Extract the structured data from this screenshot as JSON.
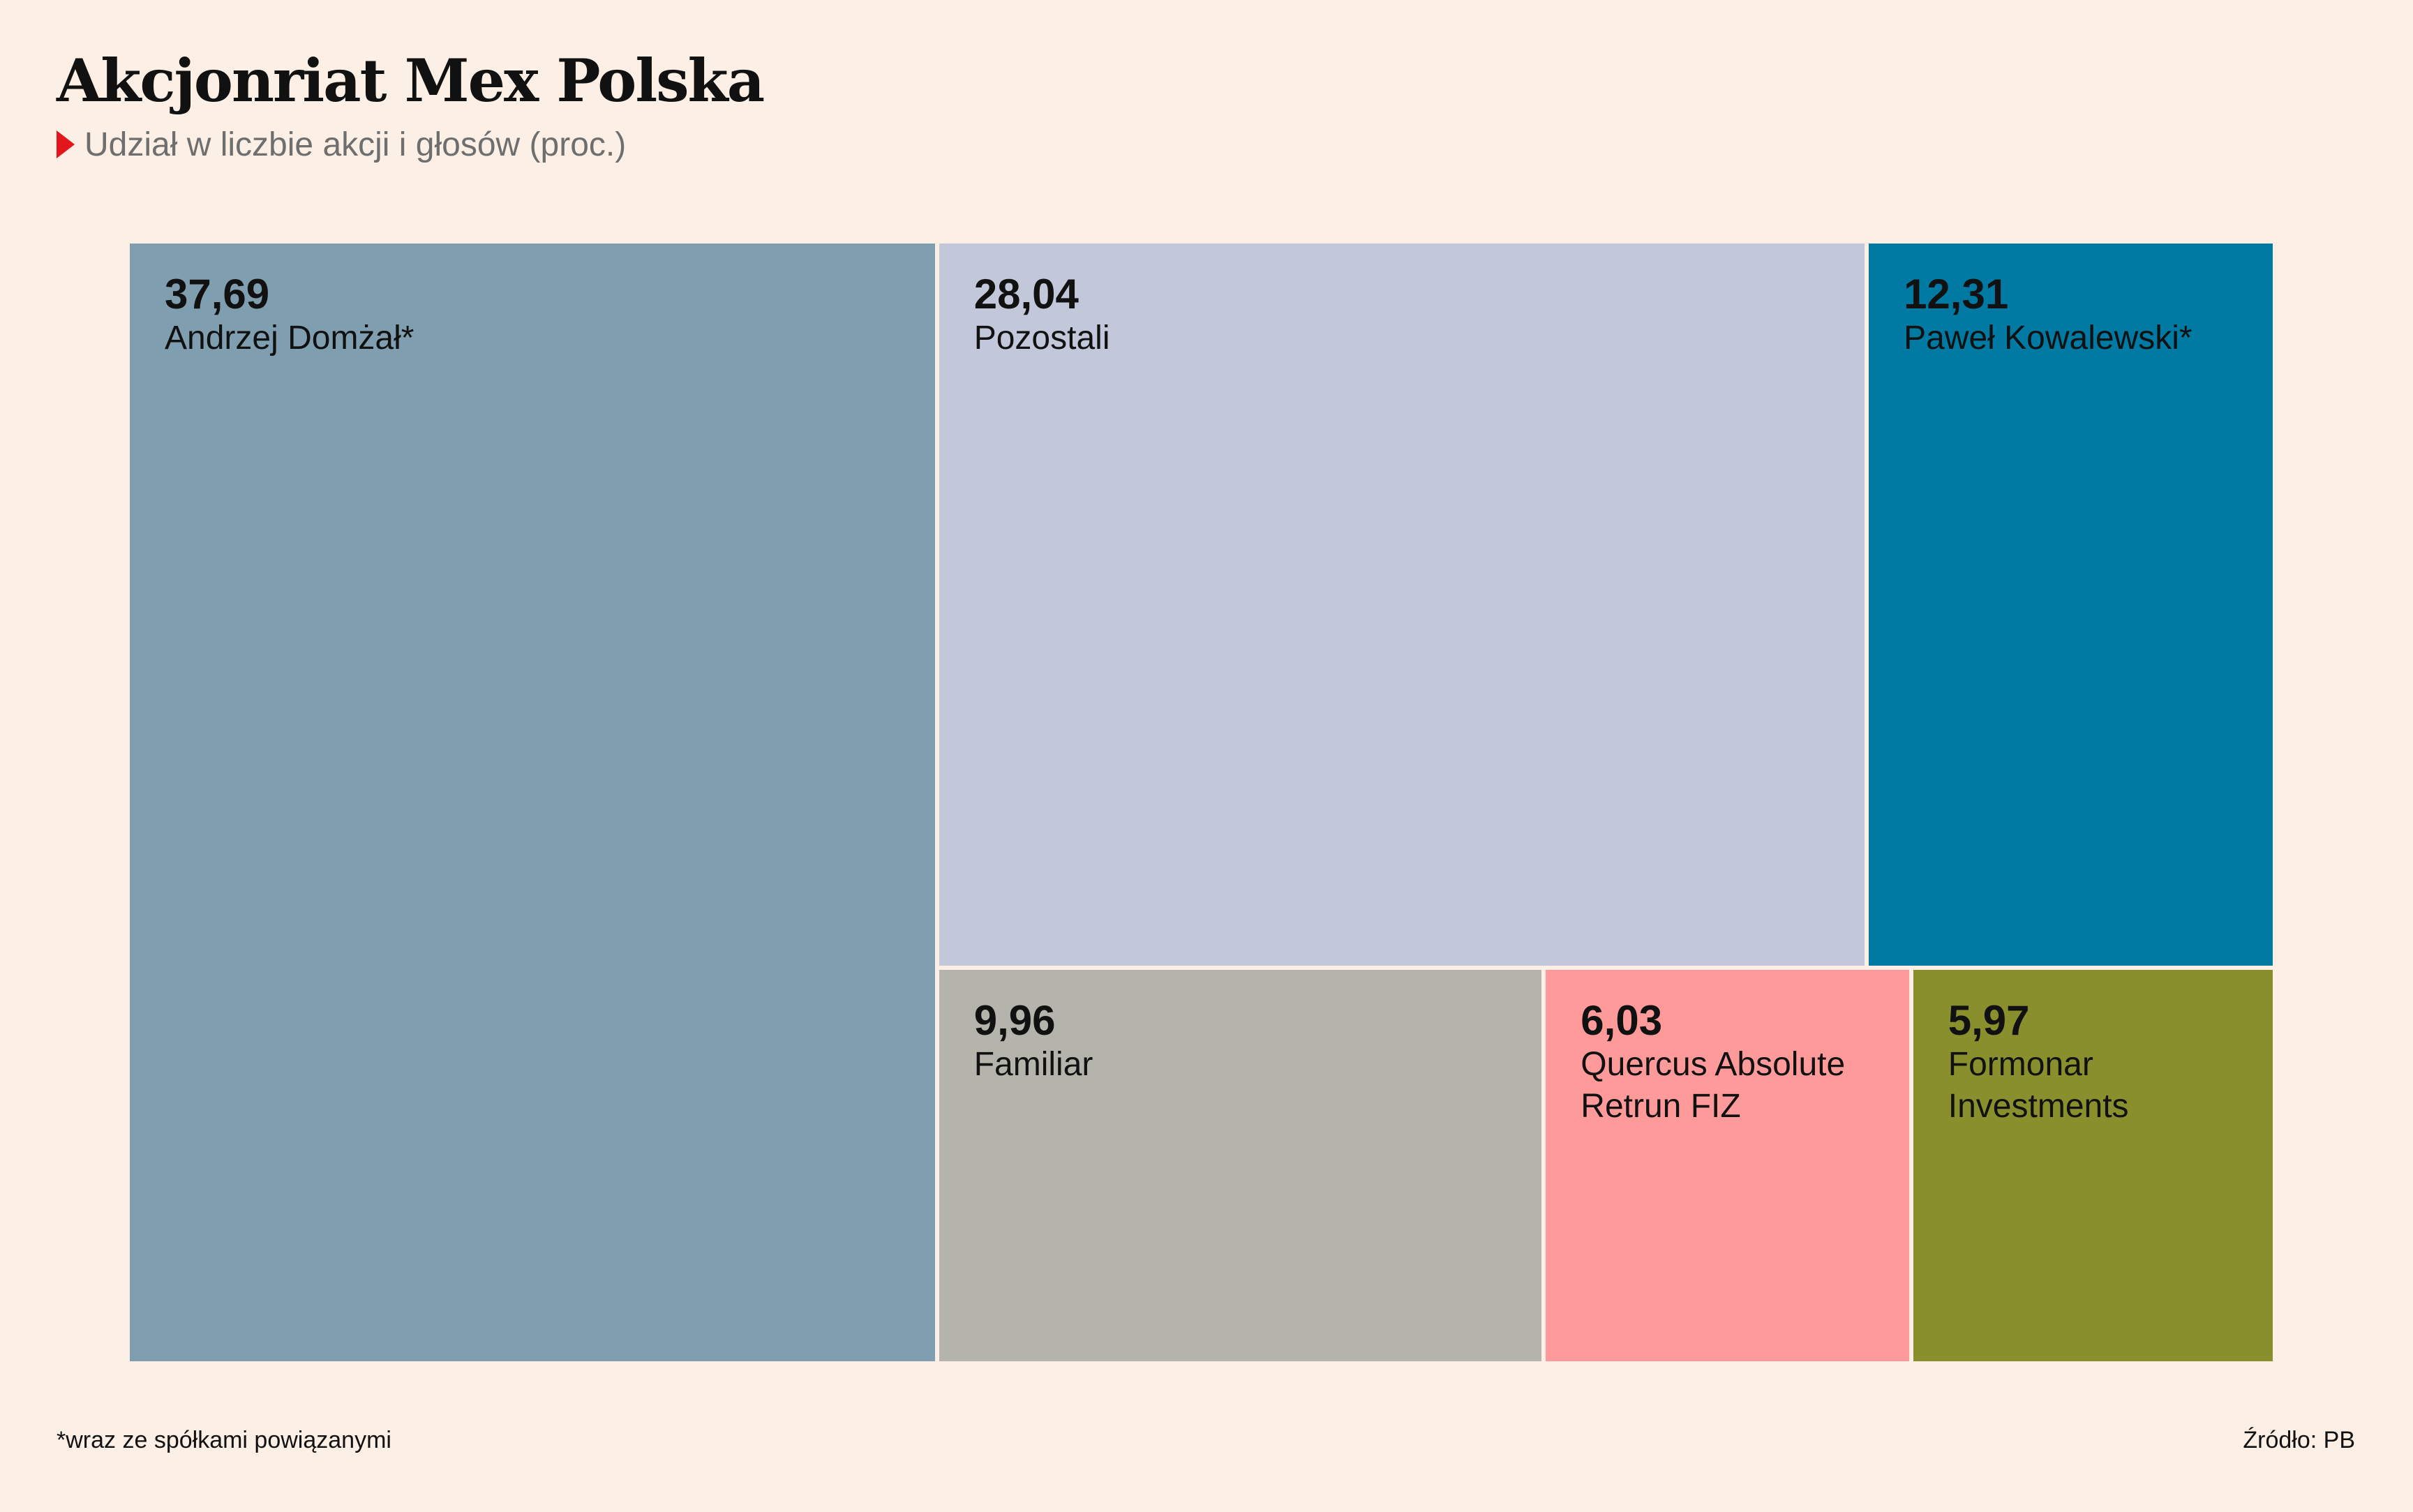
{
  "header": {
    "title": "Akcjonriat Mex Polska",
    "subtitle": "Udział w liczbie akcji i głosów (proc.)"
  },
  "footer": {
    "note": "*wraz ze spółkami powiązanymi",
    "source": "Źródło: PB"
  },
  "chart_data": {
    "type": "treemap",
    "title": "Akcjonriat Mex Polska",
    "subtitle": "Udział w liczbie akcji i głosów (proc.)",
    "unit": "proc.",
    "items": [
      {
        "name": "Andrzej Domżał*",
        "value": 37.69,
        "display_value": "37,69",
        "color": "#7f9eb0"
      },
      {
        "name": "Pozostali",
        "value": 28.04,
        "display_value": "28,04",
        "color": "#c2c7da"
      },
      {
        "name": "Paweł Kowalewski*",
        "value": 12.31,
        "display_value": "12,31",
        "color": "#007aa3"
      },
      {
        "name": "Familiar",
        "value": 9.96,
        "display_value": "9,96",
        "color": "#b4b4ac"
      },
      {
        "name": "Quercus Absolute\nRetrun FIZ",
        "value": 6.03,
        "display_value": "6,03",
        "color": "#ff9a9a"
      },
      {
        "name": "Formonar\nInvestments",
        "value": 5.97,
        "display_value": "5,97",
        "color": "#8a8f2d"
      }
    ]
  }
}
